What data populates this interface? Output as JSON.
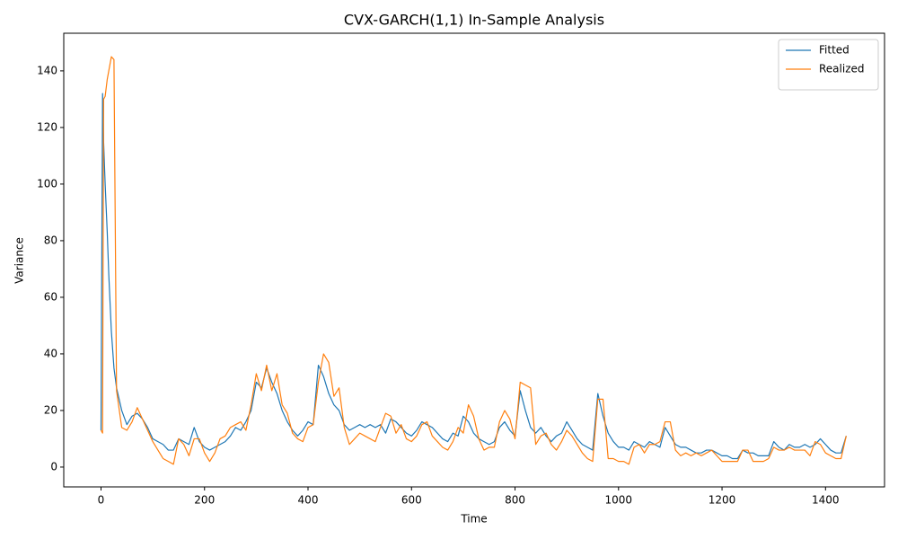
{
  "chart_data": {
    "type": "line",
    "title": "CVX-GARCH(1,1) In-Sample Analysis",
    "x_label": "Time",
    "y_label": "Variance",
    "x": [
      0,
      3,
      5,
      8,
      12,
      15,
      20,
      25,
      30,
      40,
      50,
      60,
      70,
      80,
      90,
      100,
      110,
      120,
      130,
      140,
      150,
      160,
      170,
      180,
      190,
      200,
      210,
      220,
      230,
      240,
      250,
      260,
      270,
      280,
      290,
      300,
      310,
      320,
      330,
      340,
      350,
      360,
      370,
      380,
      390,
      400,
      410,
      420,
      430,
      440,
      450,
      460,
      470,
      480,
      490,
      500,
      510,
      520,
      530,
      540,
      550,
      560,
      570,
      580,
      590,
      600,
      610,
      620,
      630,
      640,
      650,
      660,
      670,
      680,
      690,
      700,
      710,
      720,
      730,
      740,
      750,
      760,
      770,
      780,
      790,
      800,
      810,
      820,
      830,
      840,
      850,
      860,
      870,
      880,
      890,
      900,
      910,
      920,
      930,
      940,
      950,
      960,
      970,
      980,
      990,
      1000,
      1010,
      1020,
      1030,
      1040,
      1050,
      1060,
      1070,
      1080,
      1090,
      1100,
      1110,
      1120,
      1130,
      1140,
      1150,
      1160,
      1170,
      1180,
      1190,
      1200,
      1210,
      1220,
      1230,
      1240,
      1250,
      1260,
      1270,
      1280,
      1290,
      1300,
      1310,
      1320,
      1330,
      1340,
      1350,
      1360,
      1370,
      1380,
      1390,
      1400,
      1410,
      1420,
      1430,
      1440
    ],
    "series": [
      {
        "name": "Fitted",
        "color": "#1f77b4",
        "values": [
          13,
          132,
          115,
          100,
          83,
          68,
          48,
          35,
          28,
          20,
          15,
          18,
          19,
          17,
          14,
          10,
          9,
          8,
          6,
          6,
          10,
          9,
          8,
          14,
          9,
          7,
          6,
          7,
          8,
          9,
          11,
          14,
          13,
          16,
          20,
          30,
          28,
          35,
          30,
          26,
          20,
          16,
          13,
          11,
          13,
          16,
          15,
          36,
          32,
          26,
          22,
          20,
          15,
          13,
          14,
          15,
          14,
          15,
          14,
          15,
          12,
          17,
          16,
          14,
          12,
          11,
          13,
          16,
          15,
          14,
          12,
          10,
          9,
          12,
          11,
          18,
          16,
          12,
          10,
          9,
          8,
          9,
          14,
          16,
          13,
          11,
          27,
          20,
          14,
          12,
          14,
          11,
          9,
          11,
          12,
          16,
          13,
          10,
          8,
          7,
          6,
          26,
          18,
          12,
          9,
          7,
          7,
          6,
          9,
          8,
          7,
          9,
          8,
          7,
          14,
          11,
          8,
          7,
          7,
          6,
          5,
          5,
          6,
          6,
          5,
          4,
          4,
          3,
          3,
          6,
          5,
          5,
          4,
          4,
          4,
          9,
          7,
          6,
          8,
          7,
          7,
          8,
          7,
          8,
          10,
          8,
          6,
          5,
          5,
          11
        ]
      },
      {
        "name": "Realized",
        "color": "#ff7f0e",
        "values": [
          13,
          12,
          130,
          131,
          137,
          140,
          145,
          144,
          27,
          14,
          13,
          16,
          21,
          17,
          13,
          9,
          6,
          3,
          2,
          1,
          10,
          8,
          4,
          10,
          10,
          5,
          2,
          5,
          10,
          11,
          14,
          15,
          16,
          13,
          22,
          33,
          27,
          36,
          27,
          33,
          22,
          19,
          12,
          10,
          9,
          14,
          15,
          30,
          40,
          37,
          25,
          28,
          14,
          8,
          10,
          12,
          11,
          10,
          9,
          14,
          19,
          18,
          12,
          15,
          10,
          9,
          11,
          15,
          16,
          11,
          9,
          7,
          6,
          9,
          14,
          12,
          22,
          18,
          10,
          6,
          7,
          7,
          16,
          20,
          17,
          10,
          30,
          29,
          28,
          8,
          11,
          12,
          8,
          6,
          9,
          13,
          11,
          8,
          5,
          3,
          2,
          24,
          24,
          3,
          3,
          2,
          2,
          1,
          7,
          8,
          5,
          8,
          8,
          9,
          16,
          16,
          6,
          4,
          5,
          4,
          5,
          4,
          5,
          6,
          4,
          2,
          2,
          2,
          2,
          6,
          6,
          2,
          2,
          2,
          3,
          7,
          6,
          6,
          7,
          6,
          6,
          6,
          4,
          9,
          8,
          5,
          4,
          3,
          3,
          11
        ]
      }
    ],
    "xlim": [
      -72,
      1514
    ],
    "ylim": [
      -7,
      153.3
    ],
    "xticks": [
      0,
      200,
      400,
      600,
      800,
      1000,
      1200,
      1400
    ],
    "yticks": [
      0,
      20,
      40,
      60,
      80,
      100,
      120,
      140
    ],
    "legend": "upper right",
    "grid": false
  }
}
